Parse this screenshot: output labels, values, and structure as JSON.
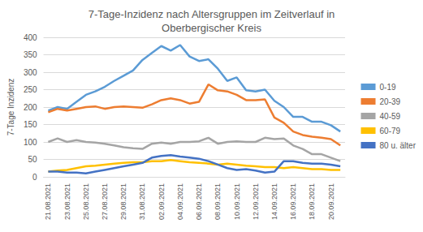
{
  "chart_data": {
    "type": "line",
    "title": "7-Tage-Inzidenz nach Altersgruppen im Zeitverlauf in\nOberbergischer Kreis",
    "y_label": "7-Tage Inzidenz",
    "categories": [
      "21.08.2021",
      null,
      "23.08.2021",
      null,
      "25.08.2021",
      null,
      "27.08.2021",
      null,
      "29.08.2021",
      null,
      "31.08.2021",
      null,
      "02.09.2021",
      null,
      "04.09.2021",
      null,
      "06.09.2021",
      null,
      "08.09.2021",
      null,
      "10.09.2021",
      null,
      "12.09.2021",
      null,
      "14.09.2021",
      null,
      "16.09.2021",
      null,
      "18.09.2021",
      null,
      "20.09.2021",
      null
    ],
    "series": [
      {
        "name": "0-19",
        "color": "#5B9BD5",
        "values": [
          190,
          200,
          195,
          215,
          235,
          245,
          258,
          275,
          290,
          305,
          335,
          355,
          375,
          362,
          378,
          345,
          332,
          337,
          310,
          275,
          285,
          248,
          245,
          250,
          218,
          200,
          172,
          172,
          158,
          158,
          148,
          130
        ]
      },
      {
        "name": "20-39",
        "color": "#ED7D31",
        "values": [
          185,
          195,
          190,
          195,
          200,
          202,
          195,
          200,
          202,
          200,
          198,
          208,
          220,
          225,
          220,
          210,
          215,
          265,
          248,
          245,
          235,
          220,
          220,
          222,
          170,
          155,
          130,
          120,
          115,
          112,
          108,
          90
        ]
      },
      {
        "name": "40-59",
        "color": "#A5A5A5",
        "values": [
          100,
          110,
          100,
          105,
          100,
          98,
          95,
          90,
          85,
          82,
          80,
          95,
          98,
          95,
          100,
          100,
          102,
          112,
          95,
          100,
          102,
          100,
          100,
          112,
          108,
          110,
          90,
          80,
          65,
          65,
          55,
          45
        ]
      },
      {
        "name": "60-79",
        "color": "#FFC000",
        "values": [
          15,
          18,
          20,
          25,
          30,
          32,
          35,
          38,
          40,
          42,
          42,
          45,
          45,
          48,
          45,
          42,
          40,
          38,
          35,
          38,
          35,
          32,
          30,
          28,
          28,
          25,
          28,
          25,
          22,
          22,
          20,
          20
        ]
      },
      {
        "name": "80 u. älter",
        "color": "#4472C4",
        "values": [
          15,
          15,
          12,
          12,
          10,
          15,
          20,
          25,
          30,
          35,
          40,
          55,
          60,
          62,
          58,
          55,
          52,
          45,
          35,
          25,
          20,
          22,
          18,
          12,
          15,
          45,
          45,
          40,
          38,
          38,
          35,
          30
        ]
      }
    ],
    "ylim": [
      0,
      400
    ],
    "yticks": [
      0,
      50,
      100,
      150,
      200,
      250,
      300,
      350,
      400
    ],
    "grid": true,
    "legend": "right"
  }
}
